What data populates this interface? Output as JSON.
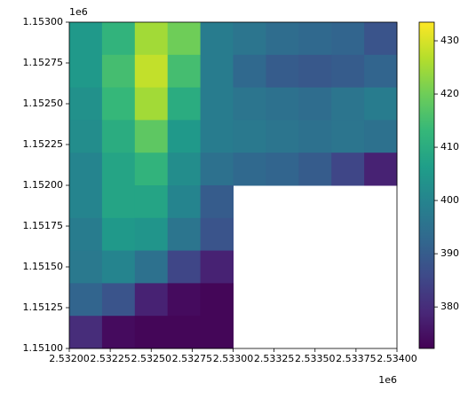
{
  "chart_data": {
    "type": "heatmap",
    "x": [
      2532100,
      2532300,
      2532500,
      2532700,
      2532900,
      2533100,
      2533300,
      2533500,
      2533700,
      2533900
    ],
    "y": [
      1152900,
      1152700,
      1152500,
      1152300,
      1152100,
      1151900,
      1151700,
      1151500,
      1151300,
      1151100
    ],
    "z": [
      [
        405,
        412,
        425,
        420,
        398,
        396,
        394,
        393,
        392,
        388
      ],
      [
        405,
        415,
        428,
        415,
        398,
        393,
        390,
        389,
        390,
        392
      ],
      [
        403,
        413,
        425,
        410,
        398,
        396,
        395,
        394,
        396,
        398
      ],
      [
        402,
        410,
        418,
        405,
        398,
        397,
        396,
        395,
        396,
        395
      ],
      [
        400,
        408,
        412,
        402,
        395,
        393,
        392,
        390,
        385,
        378
      ],
      [
        400,
        408,
        408,
        400,
        390,
        null,
        null,
        null,
        null,
        null
      ],
      [
        398,
        405,
        404,
        396,
        388,
        null,
        null,
        null,
        null,
        null
      ],
      [
        397,
        400,
        395,
        385,
        378,
        null,
        null,
        null,
        null,
        null
      ],
      [
        392,
        388,
        378,
        374,
        373,
        null,
        null,
        null,
        null,
        null
      ],
      [
        380,
        374,
        373,
        373,
        373,
        null,
        null,
        null,
        null,
        null
      ]
    ],
    "xlim": [
      2532000,
      2534000
    ],
    "ylim": [
      1151000,
      1153000
    ],
    "xticks": [
      {
        "value": 2532000,
        "label": "2.53200"
      },
      {
        "value": 2532250,
        "label": "2.53225"
      },
      {
        "value": 2532500,
        "label": "2.53250"
      },
      {
        "value": 2532750,
        "label": "2.53275"
      },
      {
        "value": 2533000,
        "label": "2.53300"
      },
      {
        "value": 2533250,
        "label": "2.53325"
      },
      {
        "value": 2533500,
        "label": "2.53350"
      },
      {
        "value": 2533750,
        "label": "2.53375"
      },
      {
        "value": 2534000,
        "label": "2.53400"
      }
    ],
    "yticks": [
      {
        "value": 1151000,
        "label": "1.15100"
      },
      {
        "value": 1151250,
        "label": "1.15125"
      },
      {
        "value": 1151500,
        "label": "1.15150"
      },
      {
        "value": 1151750,
        "label": "1.15175"
      },
      {
        "value": 1152000,
        "label": "1.15200"
      },
      {
        "value": 1152250,
        "label": "1.15225"
      },
      {
        "value": 1152500,
        "label": "1.15250"
      },
      {
        "value": 1152750,
        "label": "1.15275"
      },
      {
        "value": 1153000,
        "label": "1.15300"
      }
    ],
    "x_offset_label": "1e6",
    "y_offset_label": "1e6",
    "colormap": "viridis",
    "clim": [
      372.2,
      433.5
    ],
    "colorbar_ticks": [
      380,
      390,
      400,
      410,
      420,
      430
    ]
  }
}
